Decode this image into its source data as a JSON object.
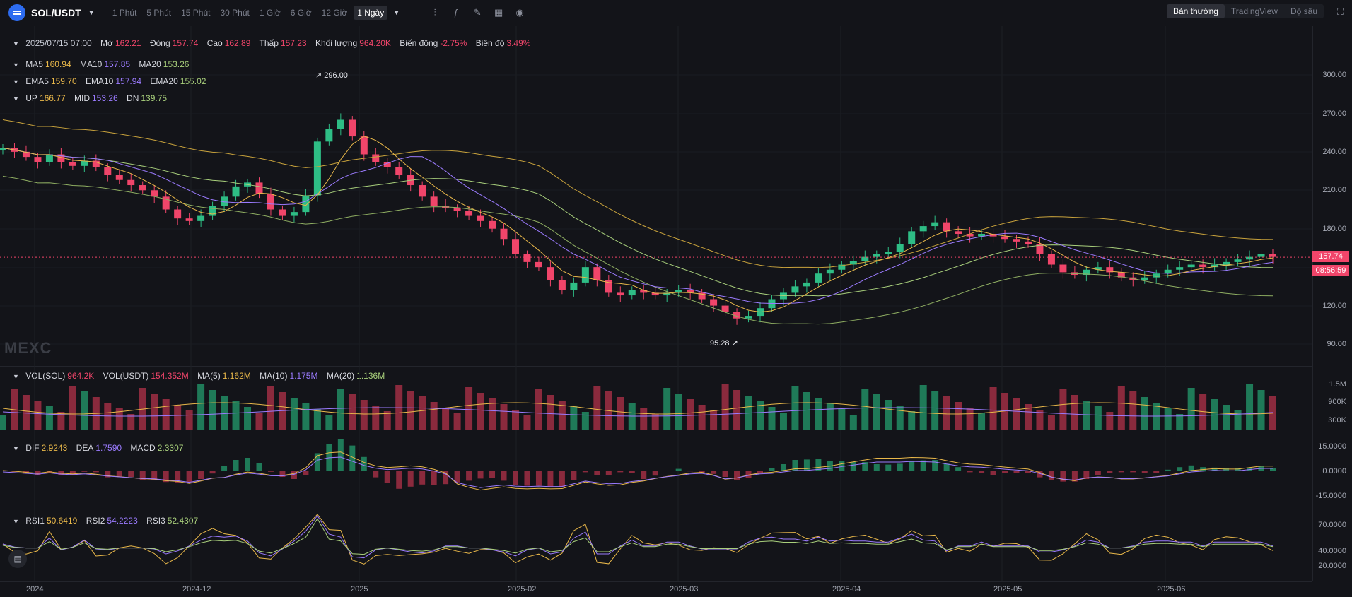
{
  "header": {
    "pair": "SOL/USDT",
    "intervals": [
      "1 Phút",
      "5 Phút",
      "15 Phút",
      "30 Phút",
      "1 Giờ",
      "6 Giờ",
      "12 Giờ",
      "1 Ngày"
    ],
    "active_interval": "1 Ngày",
    "tool_icons": [
      "candle-type-icon",
      "indicator-fx-icon",
      "draw-pencil-icon",
      "layout-grid-icon",
      "camera-icon"
    ],
    "views": [
      "Bản thường",
      "TradingView",
      "Độ sâu"
    ],
    "active_view": "Bản thường"
  },
  "ohlc": {
    "date": "2025/07/15 07:00",
    "open_label": "Mở",
    "open": "162.21",
    "close_label": "Đóng",
    "close": "157.74",
    "high_label": "Cao",
    "high": "162.89",
    "low_label": "Thấp",
    "low": "157.23",
    "volume_label": "Khối lượng",
    "volume": "964.20K",
    "change_label": "Biến động",
    "change": "-2.75%",
    "amplitude_label": "Biên độ",
    "amplitude": "3.49%"
  },
  "ma": {
    "ma5_label": "MA5",
    "ma5": "160.94",
    "ma10_label": "MA10",
    "ma10": "157.85",
    "ma20_label": "MA20",
    "ma20": "153.26"
  },
  "ema": {
    "ema5_label": "EMA5",
    "ema5": "159.70",
    "ema10_label": "EMA10",
    "ema10": "157.94",
    "ema20_label": "EMA20",
    "ema20": "155.02"
  },
  "boll": {
    "up_label": "UP",
    "up": "166.77",
    "mid_label": "MID",
    "mid": "153.26",
    "dn_label": "DN",
    "dn": "139.75"
  },
  "vol": {
    "sol_label": "VOL(SOL)",
    "sol": "964.2K",
    "usdt_label": "VOL(USDT)",
    "usdt": "154.352M",
    "ma5_label": "MA(5)",
    "ma5": "1.162M",
    "ma10_label": "MA(10)",
    "ma10": "1.175M",
    "ma20_label": "MA(20)",
    "ma20": "1.136M"
  },
  "macd": {
    "dif_label": "DIF",
    "dif": "2.9243",
    "dea_label": "DEA",
    "dea": "1.7590",
    "macd_label": "MACD",
    "macd": "2.3307"
  },
  "rsi": {
    "rsi1_label": "RSI1",
    "rsi1": "50.6419",
    "rsi2_label": "RSI2",
    "rsi2": "54.2223",
    "rsi3_label": "RSI3",
    "rsi3": "52.4307"
  },
  "price_axis": [
    "300.00",
    "270.00",
    "240.00",
    "210.00",
    "180.00",
    "120.00",
    "90.00"
  ],
  "current_price": "157.74",
  "countdown": "08:56:59",
  "vol_axis": [
    "1.5M",
    "900K",
    "300K"
  ],
  "macd_axis": [
    "15.0000",
    "0.0000",
    "-15.0000"
  ],
  "rsi_axis": [
    "70.0000",
    "40.0000",
    "20.0000"
  ],
  "time_axis": [
    "2024",
    "2024-12",
    "2025",
    "2025-02",
    "2025-03",
    "2025-04",
    "2025-05",
    "2025-06"
  ],
  "annotations": {
    "high": "296.00",
    "low": "95.28"
  },
  "watermark": "MEXC",
  "colors": {
    "up": "#2ebd85",
    "down": "#f0456a",
    "ma5": "#e9b84a",
    "ma10": "#9b7bff",
    "ma20": "#a9d07c",
    "bg": "#131419"
  },
  "chart_data": {
    "type": "candlestick",
    "y_range": [
      80,
      320
    ],
    "series_close": [
      243,
      240,
      236,
      232,
      238,
      232,
      229,
      233,
      228,
      222,
      218,
      214,
      210,
      205,
      195,
      188,
      186,
      190,
      198,
      205,
      213,
      216,
      207,
      195,
      190,
      193,
      206,
      248,
      258,
      265,
      252,
      238,
      232,
      228,
      222,
      214,
      205,
      198,
      196,
      194,
      190,
      186,
      180,
      172,
      160,
      154,
      150,
      140,
      132,
      138,
      150,
      140,
      130,
      128,
      132,
      130,
      128,
      130,
      132,
      130,
      125,
      120,
      115,
      110,
      112,
      118,
      125,
      130,
      135,
      138,
      145,
      148,
      152,
      155,
      158,
      160,
      162,
      168,
      178,
      182,
      185,
      178,
      176,
      174,
      176,
      174,
      172,
      170,
      168,
      160,
      152,
      146,
      144,
      148,
      150,
      146,
      142,
      140,
      142,
      145,
      148,
      150,
      152,
      150,
      152,
      154,
      156,
      158,
      160,
      158
    ],
    "up_label_pos": "high annotation at peak",
    "series": [
      {
        "name": "MA5"
      },
      {
        "name": "MA10"
      },
      {
        "name": "MA20"
      }
    ]
  }
}
